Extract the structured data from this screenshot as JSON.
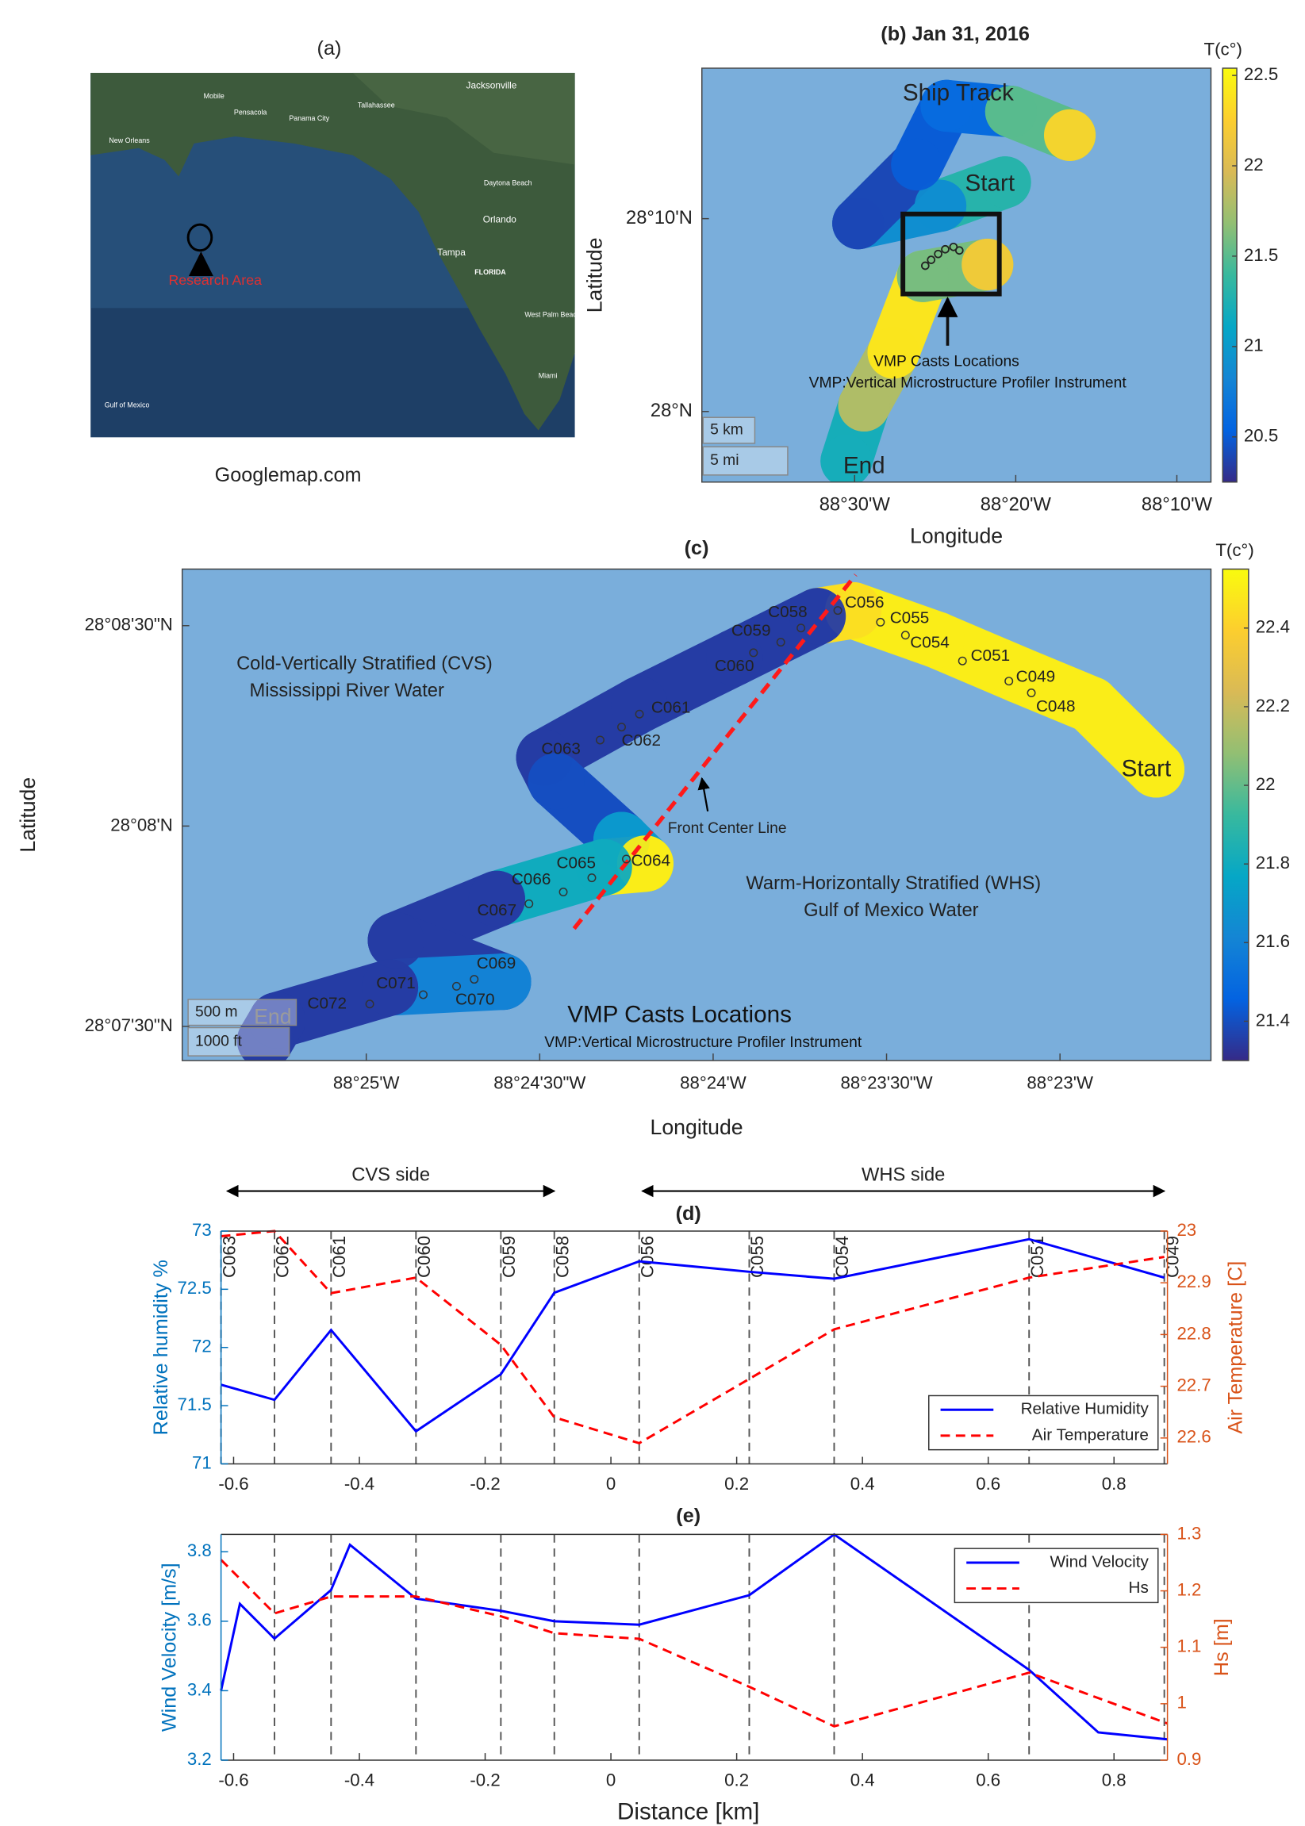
{
  "panel_a": {
    "title": "(a)",
    "caption": "Googlemap.com",
    "marker": "Research Area",
    "places": [
      "New Orleans",
      "Mobile",
      "Pensacola",
      "Panama City",
      "Tallahassee",
      "Jacksonville",
      "Daytona Beach",
      "Orlando",
      "Tampa",
      "FLORIDA",
      "West Palm Beach",
      "Miami",
      "Gulf of Mexico"
    ]
  },
  "chart_data": [
    {
      "type": "map",
      "title": "(b) Jan 31, 2016",
      "xlabel": "Longitude",
      "ylabel": "Latitude",
      "background": "#7aaedb",
      "xlim": [
        -88.658,
        -88.1314
      ],
      "ylim": [
        27.939,
        28.2967
      ],
      "xticks": [
        {
          "value": -88.5,
          "label": "88°30'W"
        },
        {
          "value": -88.333333,
          "label": "88°20'W"
        },
        {
          "value": -88.166667,
          "label": "88°10'W"
        }
      ],
      "yticks": [
        {
          "value": 28,
          "label": "28°N"
        },
        {
          "value": 28.166667,
          "label": "28°10'N"
        }
      ],
      "colorbar": {
        "title": "T(c°)",
        "lim": [
          20.25,
          22.54
        ],
        "ticks": [
          20.5,
          21,
          21.5,
          22,
          22.5
        ],
        "colormap": "parula"
      },
      "track": {
        "lon": [
          -88.50852,
          -88.49027,
          -88.45985,
          -88.42944,
          -88.36253,
          null,
          -88.34428,
          -88.41119,
          -88.49635,
          -88.43552,
          -88.40511,
          -88.3382,
          -88.27737
        ],
        "lat": [
          27.95732,
          28.00508,
          28.05081,
          28.11687,
          28.12703,
          null,
          28.19817,
          28.17785,
          28.1626,
          28.21341,
          28.26423,
          28.25915,
          28.23882
        ],
        "values": [
          21.2,
          21.8,
          22.4,
          21.6,
          22.2,
          null,
          21.3,
          20.9,
          20.4,
          20.5,
          20.6,
          21.5,
          22.3
        ]
      },
      "annotations": {
        "ship_track": "Ship Track",
        "start": "Start",
        "end": "End",
        "casts": "VMP Casts Locations",
        "instrument": "VMP:Vertical Microstructure Profiler Instrument"
      },
      "scale": [
        "5 km",
        "5 mi"
      ]
    },
    {
      "type": "map",
      "title": "(c)",
      "xlabel": "Longitude",
      "ylabel": "Latitude",
      "background": "#7aaedb",
      "xlim": [
        -88.42551,
        -88.37608
      ],
      "ylim": [
        28.12358,
        28.14402
      ],
      "xticks": [
        {
          "value": -88.416667,
          "label": "88°25'W"
        },
        {
          "value": -88.408333,
          "label": "88°24'30\"W"
        },
        {
          "value": -88.4,
          "label": "88°24'W"
        },
        {
          "value": -88.391667,
          "label": "88°23'30\"W"
        },
        {
          "value": -88.383333,
          "label": "88°23'W"
        }
      ],
      "yticks": [
        {
          "value": 28.125,
          "label": "28°07'30\"N"
        },
        {
          "value": 28.133333,
          "label": "28°08'N"
        },
        {
          "value": 28.141667,
          "label": "28°08'30\"N"
        }
      ],
      "colorbar": {
        "title": "T(c°)",
        "lim": [
          21.3,
          22.55
        ],
        "ticks": [
          21.4,
          21.6,
          21.8,
          22,
          22.2,
          22.4
        ],
        "colormap": "parula"
      },
      "track": {
        "lon": [
          -88.37871,
          -88.38185,
          -88.38528,
          -88.38927,
          -88.39327,
          -88.39498,
          -88.39898,
          -88.40354,
          -88.40811,
          -88.40754,
          -88.4044,
          -88.40326,
          -88.40525,
          -88.41039,
          -88.41524,
          -88.4101,
          -88.41553,
          -88.42095,
          -88.42152
        ],
        "lat": [
          28.13569,
          28.13838,
          28.13961,
          28.14108,
          28.1423,
          28.14206,
          28.14034,
          28.13838,
          28.13618,
          28.1352,
          28.13275,
          28.13177,
          28.13162,
          28.1303,
          28.12858,
          28.12686,
          28.12662,
          28.12525,
          28.12441
        ],
        "values": [
          22.5,
          22.5,
          22.5,
          22.5,
          22.45,
          21.35,
          21.35,
          21.35,
          21.35,
          21.4,
          21.7,
          22.5,
          21.8,
          21.35,
          21.35,
          21.6,
          21.35,
          21.35,
          21.35
        ]
      },
      "casts": {
        "labels": [
          "C048",
          "C049",
          "C051",
          "C054",
          "C055",
          "C056",
          "C058",
          "C059",
          "C060",
          "C061",
          "C062",
          "C063",
          "C064",
          "C065",
          "C066",
          "C067",
          "C069",
          "C070",
          "C071",
          "C072"
        ],
        "lon": [
          -88.38471,
          -88.38579,
          -88.38802,
          -88.39076,
          -88.39196,
          -88.39401,
          -88.39578,
          -88.39675,
          -88.39806,
          -88.40354,
          -88.4044,
          -88.40543,
          -88.40417,
          -88.40583,
          -88.4072,
          -88.40885,
          -88.41148,
          -88.41233,
          -88.41393,
          -88.4165
        ],
        "lat": [
          28.13887,
          28.13936,
          28.1402,
          28.14127,
          28.14181,
          28.1423,
          28.14157,
          28.14098,
          28.14054,
          28.13799,
          28.13745,
          28.13691,
          28.13196,
          28.13118,
          28.13059,
          28.1301,
          28.12696,
          28.12667,
          28.12632,
          28.12593
        ]
      },
      "front_line": {
        "name": "Front Center Line",
        "color": "#ff1a1a",
        "lon": [
          -88.40668,
          -88.39315
        ],
        "lat": [
          28.12907,
          28.14378
        ]
      },
      "annotations": {
        "cvs": "Cold-Vertically Stratified (CVS)",
        "cvs_water": "Mississippi River Water",
        "whs": "Warm-Horizontally Stratified (WHS)",
        "whs_water": "Gulf of Mexico Water",
        "casts": "VMP Casts Locations",
        "instrument": "VMP:Vertical Microstructure Profiler Instrument",
        "start": "Start",
        "end": "End"
      },
      "scale": [
        "500 m",
        "1000 ft"
      ]
    },
    {
      "type": "line",
      "title": "(d)",
      "ylabel": "Relative humidity %",
      "y2label": "Air Temperature [C]",
      "ycolor": "#0072bd",
      "y2color": "#d95319",
      "xlim": [
        -0.62,
        0.885
      ],
      "xticks": [
        -0.6,
        -0.4,
        -0.2,
        0,
        0.2,
        0.4,
        0.6,
        0.8
      ],
      "ylim": [
        71,
        73
      ],
      "yticks": [
        71,
        71.5,
        72,
        72.5,
        73
      ],
      "y2lim": [
        22.55,
        23
      ],
      "y2ticks": [
        22.6,
        22.7,
        22.8,
        22.9,
        23
      ],
      "legend": "lower right",
      "casts": {
        "labels": [
          "C063",
          "C062",
          "C061",
          "C060",
          "C059",
          "C058",
          "C056",
          "C055",
          "C054",
          "C051",
          "C049"
        ],
        "x": [
          -0.62,
          -0.535,
          -0.445,
          -0.31,
          -0.175,
          -0.09,
          0.045,
          0.22,
          0.355,
          0.665,
          0.88
        ]
      },
      "sides": [
        {
          "label": "CVS side",
          "x": [
            -0.61,
            -0.09
          ]
        },
        {
          "label": "WHS side",
          "x": [
            0.05,
            0.88
          ]
        }
      ],
      "series": [
        {
          "name": "Relative Humidity",
          "color": "#0000ff",
          "dash": false,
          "x": [
            -0.62,
            -0.535,
            -0.445,
            -0.31,
            -0.175,
            -0.09,
            0.045,
            0.22,
            0.355,
            0.665,
            0.88
          ],
          "values": [
            71.68,
            71.55,
            72.15,
            71.28,
            71.77,
            72.47,
            72.74,
            72.65,
            72.59,
            72.93,
            72.6
          ]
        },
        {
          "name": "Air Temperature",
          "color": "#ff0000",
          "dash": true,
          "axis": "y2",
          "x": [
            -0.62,
            -0.535,
            -0.445,
            -0.31,
            -0.175,
            -0.09,
            0.045,
            0.355,
            0.665,
            0.88
          ],
          "values": [
            22.99,
            23.0,
            22.88,
            22.91,
            22.78,
            22.64,
            22.59,
            22.81,
            22.91,
            22.95
          ]
        }
      ]
    },
    {
      "type": "line",
      "title": "(e)",
      "xlabel": "Distance [km]",
      "ylabel": "Wind Velocity [m/s]",
      "y2label": "Hs [m]",
      "ycolor": "#0072bd",
      "y2color": "#d95319",
      "xlim": [
        -0.62,
        0.885
      ],
      "xticks": [
        -0.6,
        -0.4,
        -0.2,
        0,
        0.2,
        0.4,
        0.6,
        0.8
      ],
      "ylim": [
        3.2,
        3.85
      ],
      "yticks": [
        3.2,
        3.4,
        3.6,
        3.8
      ],
      "y2lim": [
        0.9,
        1.3
      ],
      "y2ticks": [
        0.9,
        1,
        1.1,
        1.2,
        1.3
      ],
      "legend": "upper right",
      "cast_x": [
        -0.535,
        -0.445,
        -0.31,
        -0.175,
        -0.09,
        0.045,
        0.22,
        0.355,
        0.665,
        0.88
      ],
      "series": [
        {
          "name": "Wind Velocity",
          "color": "#0000ff",
          "dash": false,
          "x": [
            -0.62,
            -0.59,
            -0.535,
            -0.445,
            -0.415,
            -0.31,
            -0.175,
            -0.09,
            0.045,
            0.22,
            0.355,
            0.665,
            0.775,
            0.885
          ],
          "values": [
            3.4,
            3.65,
            3.55,
            3.69,
            3.82,
            3.665,
            3.63,
            3.6,
            3.59,
            3.675,
            3.85,
            3.46,
            3.28,
            3.26
          ]
        },
        {
          "name": "Hs",
          "color": "#ff0000",
          "dash": true,
          "axis": "y2",
          "x": [
            -0.62,
            -0.535,
            -0.445,
            -0.31,
            -0.175,
            -0.09,
            0.045,
            0.22,
            0.355,
            0.665,
            0.885
          ],
          "values": [
            1.255,
            1.16,
            1.19,
            1.19,
            1.155,
            1.125,
            1.115,
            1.03,
            0.96,
            1.055,
            0.965
          ]
        }
      ]
    }
  ]
}
